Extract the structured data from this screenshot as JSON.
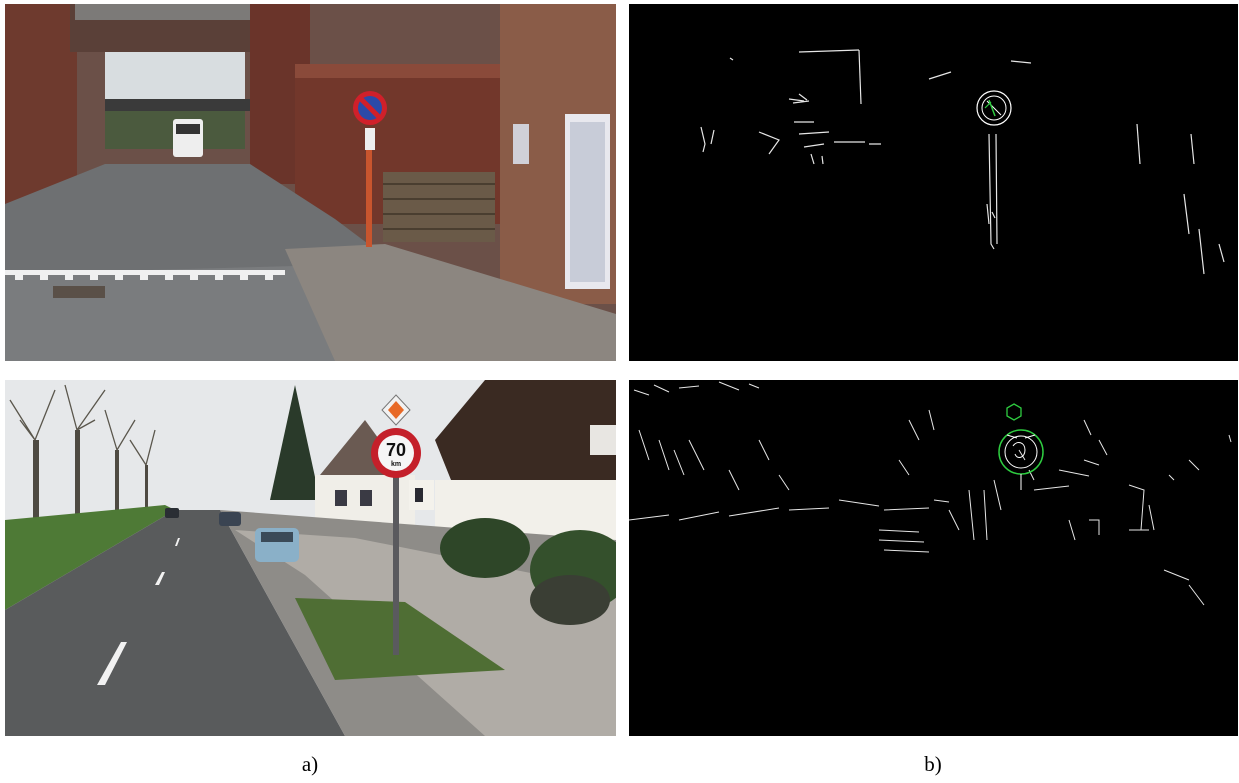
{
  "figure": {
    "captions": {
      "a": "a)",
      "b": "b)"
    },
    "panels": {
      "top_left": {
        "kind": "photo",
        "sign_plate": ""
      },
      "top_right": {
        "kind": "edge-map",
        "accent": "#2ecc40"
      },
      "bottom_left": {
        "kind": "photo",
        "speed_value": "70",
        "speed_unit": "km"
      },
      "bottom_right": {
        "kind": "edge-map",
        "accent": "#2ecc40"
      }
    }
  }
}
